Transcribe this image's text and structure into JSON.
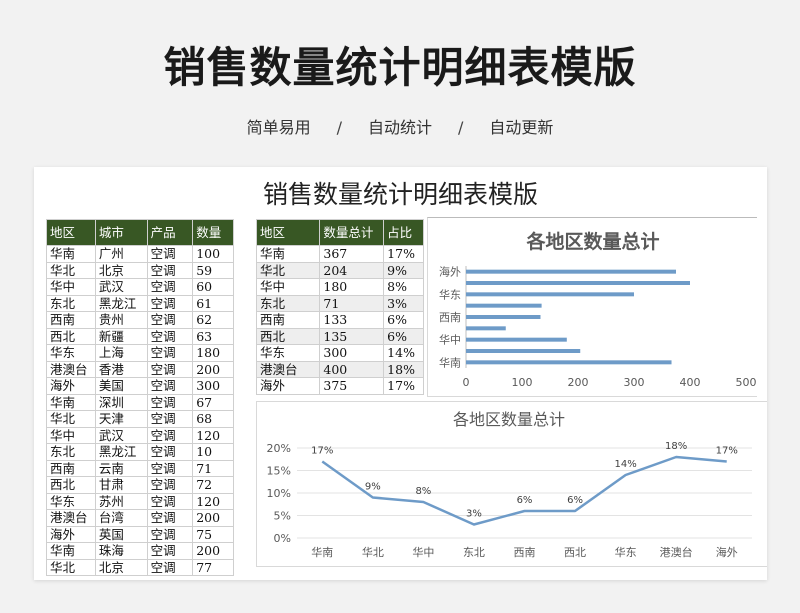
{
  "header": {
    "title": "销售数量统计明细表模版",
    "tags": [
      "简单易用",
      "自动统计",
      "自动更新"
    ],
    "separator": "/"
  },
  "sheet": {
    "title": "销售数量统计明细表模版",
    "detail_table": {
      "headers": [
        "地区",
        "城市",
        "产品",
        "数量"
      ],
      "rows": [
        [
          "华南",
          "广州",
          "空调",
          "100"
        ],
        [
          "华北",
          "北京",
          "空调",
          "59"
        ],
        [
          "华中",
          "武汉",
          "空调",
          "60"
        ],
        [
          "东北",
          "黑龙江",
          "空调",
          "61"
        ],
        [
          "西南",
          "贵州",
          "空调",
          "62"
        ],
        [
          "西北",
          "新疆",
          "空调",
          "63"
        ],
        [
          "华东",
          "上海",
          "空调",
          "180"
        ],
        [
          "港澳台",
          "香港",
          "空调",
          "200"
        ],
        [
          "海外",
          "美国",
          "空调",
          "300"
        ],
        [
          "华南",
          "深圳",
          "空调",
          "67"
        ],
        [
          "华北",
          "天津",
          "空调",
          "68"
        ],
        [
          "华中",
          "武汉",
          "空调",
          "120"
        ],
        [
          "东北",
          "黑龙江",
          "空调",
          "10"
        ],
        [
          "西南",
          "云南",
          "空调",
          "71"
        ],
        [
          "西北",
          "甘肃",
          "空调",
          "72"
        ],
        [
          "华东",
          "苏州",
          "空调",
          "120"
        ],
        [
          "港澳台",
          "台湾",
          "空调",
          "200"
        ],
        [
          "海外",
          "英国",
          "空调",
          "75"
        ],
        [
          "华南",
          "珠海",
          "空调",
          "200"
        ],
        [
          "华北",
          "北京",
          "空调",
          "77"
        ]
      ]
    },
    "summary_table": {
      "headers": [
        "地区",
        "数量总计",
        "占比"
      ],
      "rows": [
        [
          "华南",
          "367",
          "17%"
        ],
        [
          "华北",
          "204",
          "9%"
        ],
        [
          "华中",
          "180",
          "8%"
        ],
        [
          "东北",
          "71",
          "3%"
        ],
        [
          "西南",
          "133",
          "6%"
        ],
        [
          "西北",
          "135",
          "6%"
        ],
        [
          "华东",
          "300",
          "14%"
        ],
        [
          "港澳台",
          "400",
          "18%"
        ],
        [
          "海外",
          "375",
          "17%"
        ]
      ]
    }
  },
  "chart_data": [
    {
      "type": "bar",
      "orientation": "horizontal",
      "title": "各地区数量总计",
      "categories": [
        "华南",
        "华北",
        "华中",
        "东北",
        "西南",
        "西北",
        "华东",
        "港澳台",
        "海外"
      ],
      "category_labels_shown": [
        "华南",
        "华中",
        "西南",
        "华东",
        "海外"
      ],
      "values": [
        367,
        204,
        180,
        71,
        133,
        135,
        300,
        400,
        375
      ],
      "xlim": [
        0,
        500
      ],
      "xticks": [
        "0",
        "100",
        "200",
        "300",
        "400",
        "500"
      ],
      "color": "#6e9bc8"
    },
    {
      "type": "line",
      "title": "各地区数量总计",
      "categories": [
        "华南",
        "华北",
        "华中",
        "东北",
        "西南",
        "西北",
        "华东",
        "港澳台",
        "海外"
      ],
      "values": [
        17,
        9,
        8,
        3,
        6,
        6,
        14,
        18,
        17
      ],
      "data_labels": [
        "17%",
        "9%",
        "8%",
        "3%",
        "6%",
        "6%",
        "14%",
        "18%",
        "17%"
      ],
      "ylim": [
        0,
        20
      ],
      "yticks": [
        "0%",
        "5%",
        "10%",
        "15%",
        "20%"
      ],
      "color": "#6e9bc8"
    }
  ]
}
